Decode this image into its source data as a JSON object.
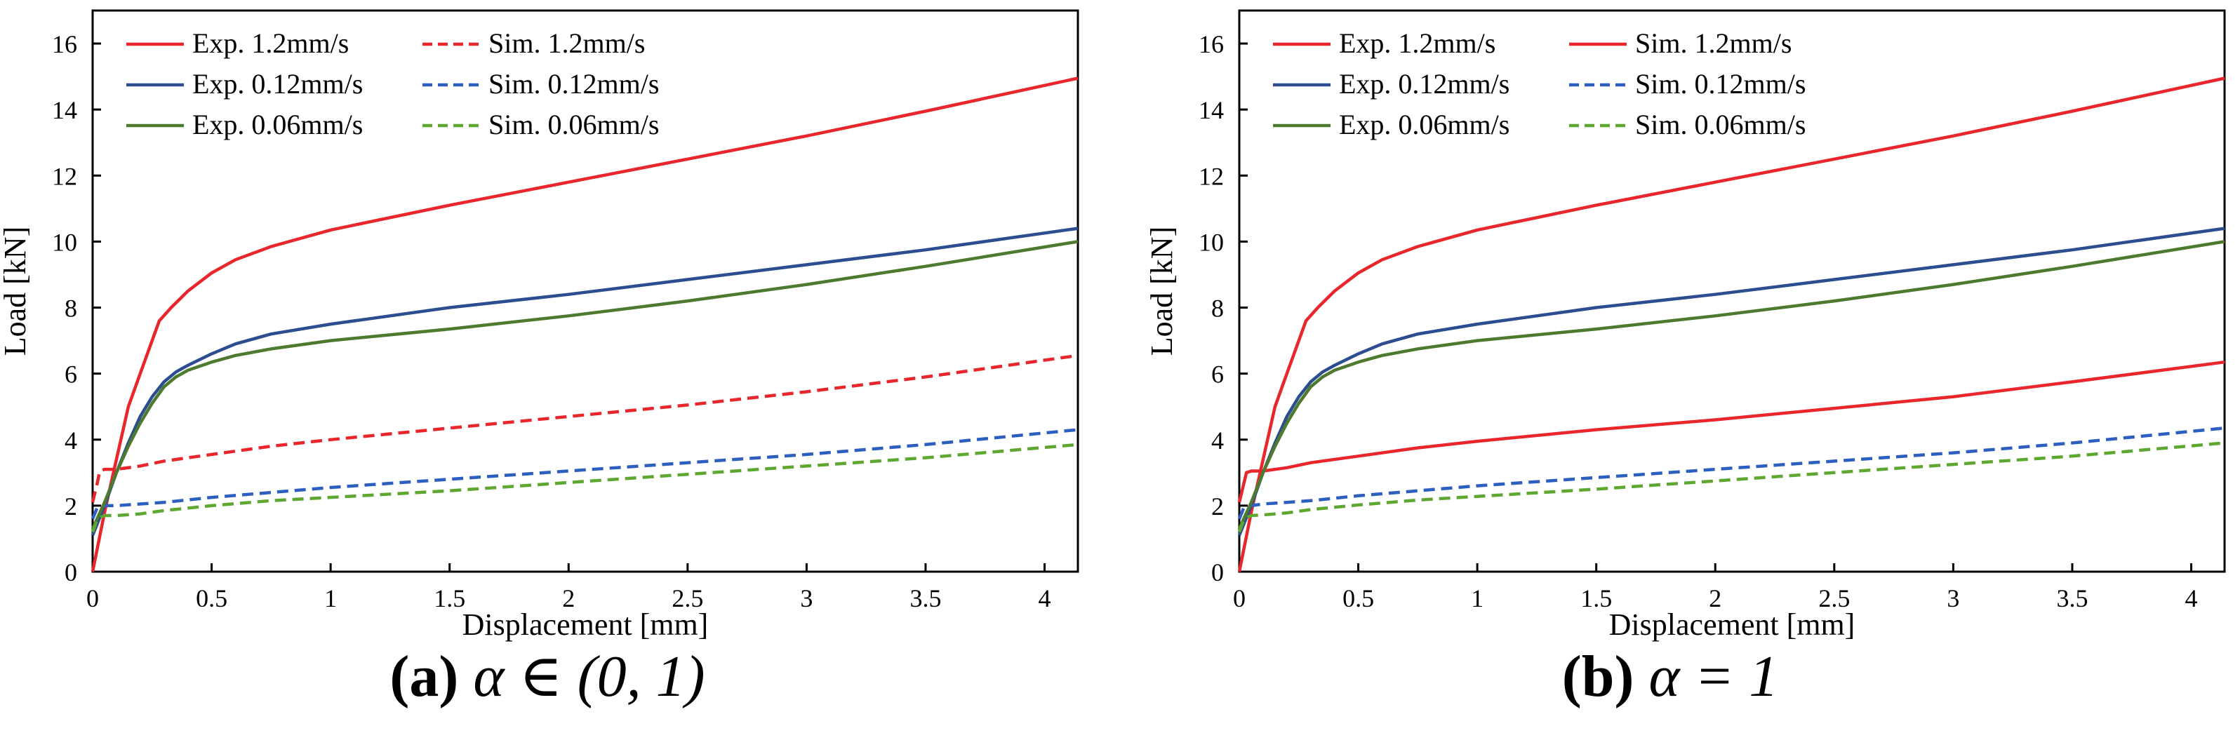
{
  "chart_data": [
    {
      "type": "line",
      "panel": "a",
      "caption_label": "(a)",
      "caption_math": "α ∈ (0, 1)",
      "xlabel": "Displacement [mm]",
      "ylabel": "Load [kN]",
      "xlim": [
        0,
        4.14
      ],
      "ylim": [
        0,
        17
      ],
      "xticks": [
        0,
        0.5,
        1,
        1.5,
        2,
        2.5,
        3,
        3.5,
        4
      ],
      "xtick_labels": [
        "0",
        "0.5",
        "1",
        "1.5",
        "2",
        "2.5",
        "3",
        "3.5",
        "4"
      ],
      "yticks": [
        0,
        2,
        4,
        6,
        8,
        10,
        12,
        14,
        16
      ],
      "ytick_labels": [
        "0",
        "2",
        "4",
        "6",
        "8",
        "10",
        "12",
        "14",
        "16"
      ],
      "legend_position": "top-left",
      "series": [
        {
          "name": "Exp. 1.2mm/s",
          "color": "#e8262b",
          "style": "solid",
          "x": [
            0,
            0.05,
            0.1,
            0.15,
            0.2,
            0.28,
            0.33,
            0.4,
            0.5,
            0.6,
            0.75,
            1.0,
            1.5,
            2.0,
            2.5,
            3.0,
            3.5,
            4.14
          ],
          "y": [
            0,
            1.8,
            3.4,
            5.0,
            6.0,
            7.6,
            8.0,
            8.5,
            9.05,
            9.45,
            9.85,
            10.35,
            11.1,
            11.8,
            12.5,
            13.2,
            13.95,
            14.95
          ]
        },
        {
          "name": "Sim. 1.2mm/s",
          "color": "#e8262b",
          "style": "dashed",
          "x": [
            0,
            0.02,
            0.03,
            0.05,
            0.1,
            0.2,
            0.3,
            0.5,
            0.75,
            1.0,
            1.5,
            2.0,
            2.5,
            3.0,
            3.5,
            4.14
          ],
          "y": [
            2.1,
            2.7,
            3.05,
            3.1,
            3.1,
            3.2,
            3.35,
            3.55,
            3.8,
            4.0,
            4.35,
            4.7,
            5.05,
            5.45,
            5.9,
            6.55
          ]
        },
        {
          "name": "Exp. 0.12mm/s",
          "color": "#2c4d8f",
          "style": "solid",
          "x": [
            0,
            0.05,
            0.1,
            0.15,
            0.2,
            0.25,
            0.3,
            0.35,
            0.4,
            0.5,
            0.6,
            0.75,
            1.0,
            1.5,
            2.0,
            2.5,
            3.0,
            3.5,
            4.14
          ],
          "y": [
            1.1,
            2.0,
            3.0,
            3.9,
            4.7,
            5.3,
            5.75,
            6.05,
            6.25,
            6.6,
            6.9,
            7.2,
            7.5,
            8.0,
            8.4,
            8.85,
            9.3,
            9.75,
            10.4
          ]
        },
        {
          "name": "Sim. 0.12mm/s",
          "color": "#2c5fbf",
          "style": "dashed",
          "x": [
            0,
            0.02,
            0.05,
            0.1,
            0.2,
            0.3,
            0.5,
            0.75,
            1.0,
            1.5,
            2.0,
            2.5,
            3.0,
            3.5,
            4.14
          ],
          "y": [
            1.6,
            1.95,
            2.0,
            2.0,
            2.05,
            2.1,
            2.25,
            2.4,
            2.55,
            2.8,
            3.05,
            3.3,
            3.55,
            3.85,
            4.3
          ]
        },
        {
          "name": "Exp. 0.06mm/s",
          "color": "#4d7a2e",
          "style": "solid",
          "x": [
            0,
            0.05,
            0.1,
            0.15,
            0.2,
            0.25,
            0.3,
            0.35,
            0.4,
            0.5,
            0.6,
            0.75,
            1.0,
            1.5,
            2.0,
            2.5,
            3.0,
            3.5,
            4.14
          ],
          "y": [
            1.3,
            2.1,
            3.0,
            3.8,
            4.5,
            5.1,
            5.6,
            5.9,
            6.1,
            6.35,
            6.55,
            6.75,
            7.0,
            7.35,
            7.75,
            8.2,
            8.7,
            9.25,
            10.0
          ]
        },
        {
          "name": "Sim. 0.06mm/s",
          "color": "#5ea832",
          "style": "dashed",
          "x": [
            0,
            0.02,
            0.05,
            0.1,
            0.2,
            0.3,
            0.5,
            0.75,
            1.0,
            1.5,
            2.0,
            2.5,
            3.0,
            3.5,
            4.14
          ],
          "y": [
            1.2,
            1.6,
            1.7,
            1.7,
            1.75,
            1.85,
            2.0,
            2.15,
            2.25,
            2.45,
            2.7,
            2.95,
            3.2,
            3.45,
            3.85
          ]
        }
      ]
    },
    {
      "type": "line",
      "panel": "b",
      "caption_label": "(b)",
      "caption_math": "α = 1",
      "xlabel": "Displacement [mm]",
      "ylabel": "Load [kN]",
      "xlim": [
        0,
        4.14
      ],
      "ylim": [
        0,
        17
      ],
      "xticks": [
        0,
        0.5,
        1,
        1.5,
        2,
        2.5,
        3,
        3.5,
        4
      ],
      "xtick_labels": [
        "0",
        "0.5",
        "1",
        "1.5",
        "2",
        "2.5",
        "3",
        "3.5",
        "4"
      ],
      "yticks": [
        0,
        2,
        4,
        6,
        8,
        10,
        12,
        14,
        16
      ],
      "ytick_labels": [
        "0",
        "2",
        "4",
        "6",
        "8",
        "10",
        "12",
        "14",
        "16"
      ],
      "legend_position": "top-left",
      "series": [
        {
          "name": "Exp. 1.2mm/s",
          "color": "#e8262b",
          "style": "solid",
          "x": [
            0,
            0.05,
            0.1,
            0.15,
            0.2,
            0.28,
            0.33,
            0.4,
            0.5,
            0.6,
            0.75,
            1.0,
            1.5,
            2.0,
            2.5,
            3.0,
            3.5,
            4.14
          ],
          "y": [
            0,
            1.8,
            3.4,
            5.0,
            6.0,
            7.6,
            8.0,
            8.5,
            9.05,
            9.45,
            9.85,
            10.35,
            11.1,
            11.8,
            12.5,
            13.2,
            13.95,
            14.95
          ]
        },
        {
          "name": "Sim. 1.2mm/s",
          "color": "#e8262b",
          "style": "solid",
          "x": [
            0,
            0.02,
            0.03,
            0.05,
            0.1,
            0.2,
            0.3,
            0.5,
            0.75,
            1.0,
            1.5,
            2.0,
            2.5,
            3.0,
            3.5,
            4.14
          ],
          "y": [
            2.1,
            2.7,
            3.0,
            3.05,
            3.05,
            3.15,
            3.3,
            3.5,
            3.75,
            3.95,
            4.3,
            4.6,
            4.95,
            5.3,
            5.75,
            6.35
          ]
        },
        {
          "name": "Exp. 0.12mm/s",
          "color": "#2c4d8f",
          "style": "solid",
          "x": [
            0,
            0.05,
            0.1,
            0.15,
            0.2,
            0.25,
            0.3,
            0.35,
            0.4,
            0.5,
            0.6,
            0.75,
            1.0,
            1.5,
            2.0,
            2.5,
            3.0,
            3.5,
            4.14
          ],
          "y": [
            1.1,
            2.0,
            3.0,
            3.9,
            4.7,
            5.3,
            5.75,
            6.05,
            6.25,
            6.6,
            6.9,
            7.2,
            7.5,
            8.0,
            8.4,
            8.85,
            9.3,
            9.75,
            10.4
          ]
        },
        {
          "name": "Sim. 0.12mm/s",
          "color": "#2c5fbf",
          "style": "dashed",
          "x": [
            0,
            0.02,
            0.05,
            0.1,
            0.2,
            0.3,
            0.5,
            0.75,
            1.0,
            1.5,
            2.0,
            2.5,
            3.0,
            3.5,
            4.14
          ],
          "y": [
            1.6,
            1.95,
            2.0,
            2.05,
            2.1,
            2.15,
            2.3,
            2.45,
            2.6,
            2.85,
            3.1,
            3.35,
            3.6,
            3.9,
            4.35
          ]
        },
        {
          "name": "Exp. 0.06mm/s",
          "color": "#4d7a2e",
          "style": "solid",
          "x": [
            0,
            0.05,
            0.1,
            0.15,
            0.2,
            0.25,
            0.3,
            0.35,
            0.4,
            0.5,
            0.6,
            0.75,
            1.0,
            1.5,
            2.0,
            2.5,
            3.0,
            3.5,
            4.14
          ],
          "y": [
            1.3,
            2.1,
            3.0,
            3.8,
            4.5,
            5.1,
            5.6,
            5.9,
            6.1,
            6.35,
            6.55,
            6.75,
            7.0,
            7.35,
            7.75,
            8.2,
            8.7,
            9.25,
            10.0
          ]
        },
        {
          "name": "Sim. 0.06mm/s",
          "color": "#5ea832",
          "style": "dashed",
          "x": [
            0,
            0.02,
            0.05,
            0.1,
            0.2,
            0.3,
            0.5,
            0.75,
            1.0,
            1.5,
            2.0,
            2.5,
            3.0,
            3.5,
            4.14
          ],
          "y": [
            1.2,
            1.6,
            1.7,
            1.72,
            1.78,
            1.88,
            2.02,
            2.17,
            2.28,
            2.5,
            2.75,
            3.0,
            3.25,
            3.5,
            3.9
          ]
        }
      ]
    }
  ]
}
